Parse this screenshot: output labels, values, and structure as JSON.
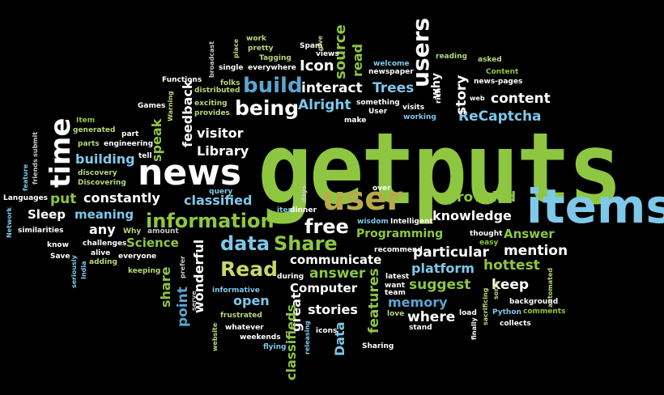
{
  "words": {
    "getputs": "getputs",
    "items": "items",
    "news": "news",
    "user": "user",
    "time": "time",
    "information": "information",
    "build": "build",
    "being": "being",
    "users": "users",
    "read_big": "Read",
    "data_big": "data",
    "share_big": "Share",
    "free": "free",
    "provided": "provided",
    "knowledge": "knowledge",
    "content": "content",
    "recaptcha": "ReCaptcha",
    "alright": "Alright",
    "interact": "interact",
    "trees": "Trees",
    "icon": "Icon",
    "source": "source",
    "read_small": "read",
    "story": "story",
    "why": "why",
    "visitor": "visitor",
    "library": "Library",
    "feedback": "feedback",
    "speak": "speak",
    "building": "building",
    "constantly": "constantly",
    "classified": "classified",
    "put": "put",
    "sleep": "Sleep",
    "meaning": "meaning",
    "any": "any",
    "science": "Science",
    "programming": "Programming",
    "answer_cap": "Answer",
    "mention": "mention",
    "particular": "particular",
    "communicate": "communicate",
    "answer": "answer",
    "computer": "Computer",
    "platform": "platform",
    "hottest": "hottest",
    "suggest": "suggest",
    "keep": "keep",
    "memory": "memory",
    "where": "where",
    "stories": "stories",
    "great": "great",
    "open": "open",
    "point": "point",
    "share_small": "share",
    "wonderful": "wonderful",
    "classifieds": "classifieds",
    "features": "features",
    "data_small": "Data",
    "work": "work",
    "pretty": "pretty",
    "spam": "Spam",
    "give": "give",
    "views": "views",
    "tagging": "Tagging",
    "single": "single",
    "everywhere": "everywhere",
    "broadcast": "broadcast",
    "place": "place",
    "welcome": "welcome",
    "newspaper": "newspaper",
    "reading": "reading",
    "asked": "asked",
    "content_small": "Content",
    "news_pages": "news-pages",
    "functions": "Functions",
    "folks": "folks",
    "distributed": "distributed",
    "rich": "rich",
    "web": "web",
    "games": "Games",
    "warning": "Warning",
    "exciting": "exciting",
    "provides": "provides",
    "something": "something",
    "user_small": "User",
    "make": "make",
    "visits": "visits",
    "working": "working",
    "item": "Item",
    "generated": "generated",
    "part": "part",
    "engineering": "engineering",
    "parts": "parts",
    "submit": "submit",
    "friends": "friends",
    "feature": "feature",
    "tell": "tell",
    "discovery": "discovery",
    "discovering": "Discovering",
    "query": "query",
    "languages": "Languages",
    "network": "Network",
    "similarities": "similarities",
    "days": "days",
    "over": "over",
    "item_small": "item",
    "dinner": "dinner",
    "why_cap": "Why",
    "wisdom": "wisdom",
    "intelligent": "Intelligent",
    "amount": "amount",
    "know": "know",
    "challenges": "challenges",
    "alive": "alive",
    "save": "Save",
    "adding": "adding",
    "everyone": "everyone",
    "seriously": "seriously",
    "india": "India",
    "prefer": "prefer",
    "keeping": "keeping",
    "recommend": "recommend",
    "thought": "thought",
    "easy": "easy",
    "during": "during",
    "latest": "latest",
    "want": "want",
    "team": "team",
    "serve": "serve",
    "informative": "informative",
    "frustrated": "frustrated",
    "whatever": "whatever",
    "weekends": "weekends",
    "flying": "flying",
    "website": "website",
    "icons": "icons",
    "releasing": "releasing",
    "sharing": "Sharing",
    "stand": "stand",
    "love": "love",
    "load": "load",
    "finally": "finally",
    "sacrificing": "sacrificing",
    "sorts": "sorts",
    "automated": "automated",
    "python": "Python",
    "comments": "comments",
    "background": "background",
    "collects": "collects"
  }
}
